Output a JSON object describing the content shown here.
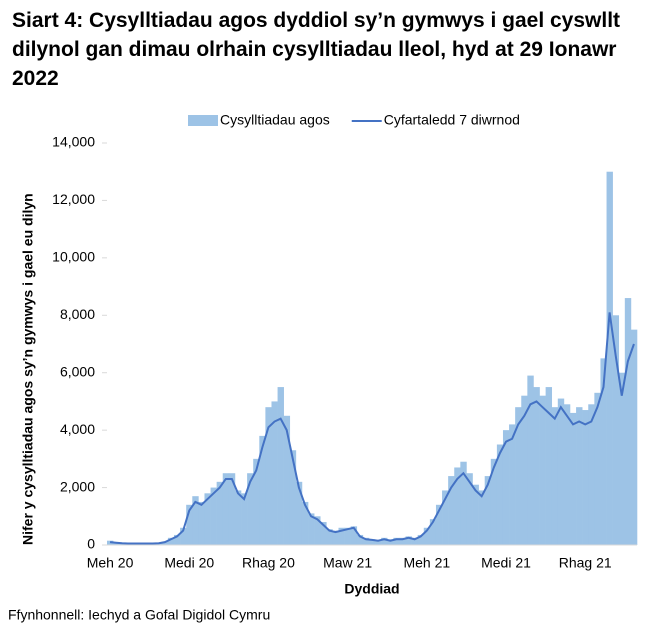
{
  "chart_data": {
    "type": "bar-line",
    "title": "Siart 4: Cysylltiadau agos dyddiol sy’n gymwys i gael cyswllt dilynol gan dimau olrhain cysylltiadau lleol, hyd at 29 Ionawr 2022",
    "x_label": "Dyddiad",
    "y_label": "Nifer y cysylltiadau agos sy’n gymwys i gael eu dilyn",
    "source": "Ffynhonnell: Iechyd a Gofal Digidol Cymru",
    "categories": [
      "Meh 20",
      null,
      null,
      null,
      null,
      null,
      null,
      null,
      null,
      null,
      null,
      null,
      null,
      "Medi 20",
      null,
      null,
      null,
      null,
      null,
      null,
      null,
      null,
      null,
      null,
      null,
      null,
      "Rhag 20",
      null,
      null,
      null,
      null,
      null,
      null,
      null,
      null,
      null,
      null,
      null,
      null,
      "Maw 21",
      null,
      null,
      null,
      null,
      null,
      null,
      null,
      null,
      null,
      null,
      null,
      null,
      "Meh 21",
      null,
      null,
      null,
      null,
      null,
      null,
      null,
      null,
      null,
      null,
      null,
      null,
      "Medi 21",
      null,
      null,
      null,
      null,
      null,
      null,
      null,
      null,
      null,
      null,
      null,
      null,
      "Rhag 21",
      null,
      null,
      null,
      null,
      null,
      null,
      null,
      null
    ],
    "series": [
      {
        "name": "Cysylltiadau agos",
        "type": "bar",
        "color": "#9dc3e6",
        "values": [
          150,
          100,
          80,
          60,
          50,
          50,
          60,
          60,
          80,
          120,
          250,
          350,
          600,
          1400,
          1700,
          1500,
          1800,
          2000,
          2200,
          2500,
          2500,
          1900,
          1800,
          2500,
          3000,
          3800,
          4800,
          5000,
          5500,
          4500,
          3300,
          2200,
          1500,
          1100,
          1000,
          800,
          550,
          500,
          600,
          600,
          650,
          350,
          250,
          200,
          180,
          250,
          200,
          250,
          250,
          300,
          250,
          350,
          600,
          900,
          1400,
          1900,
          2400,
          2700,
          2900,
          2500,
          2100,
          1900,
          2400,
          3000,
          3500,
          4000,
          4200,
          4800,
          5200,
          5900,
          5500,
          5200,
          5500,
          4800,
          5100,
          4900,
          4600,
          4800,
          4700,
          4900,
          5300,
          6500,
          13000,
          8000,
          6000,
          8600,
          7500
        ]
      },
      {
        "name": "Cyfartaledd 7 diwrnod",
        "type": "line",
        "color": "#4472c4",
        "values": [
          100,
          80,
          60,
          50,
          50,
          50,
          50,
          50,
          60,
          100,
          200,
          300,
          500,
          1200,
          1500,
          1400,
          1600,
          1800,
          2000,
          2300,
          2300,
          1800,
          1600,
          2200,
          2600,
          3400,
          4100,
          4300,
          4400,
          4000,
          3000,
          2000,
          1400,
          1000,
          900,
          700,
          500,
          450,
          500,
          550,
          600,
          300,
          200,
          180,
          150,
          200,
          150,
          200,
          200,
          250,
          200,
          300,
          500,
          800,
          1200,
          1600,
          2000,
          2300,
          2500,
          2200,
          1900,
          1700,
          2100,
          2700,
          3200,
          3600,
          3700,
          4200,
          4500,
          4900,
          5000,
          4800,
          4600,
          4400,
          4800,
          4500,
          4200,
          4300,
          4200,
          4300,
          4800,
          5500,
          8100,
          6600,
          5200,
          6400,
          7000
        ]
      }
    ],
    "ylim": [
      0,
      14000
    ],
    "yticks": [
      0,
      {
        "value": 2000,
        "label": "2,000"
      },
      {
        "value": 4000,
        "label": "4,000"
      },
      {
        "value": 6000,
        "label": "6,000"
      },
      {
        "value": 8000,
        "label": "8,000"
      },
      {
        "value": 10000,
        "label": "10,000"
      },
      {
        "value": 12000,
        "label": "12,000"
      },
      {
        "value": 14000,
        "label": "14,000"
      }
    ],
    "grid": false,
    "legend": "top"
  }
}
